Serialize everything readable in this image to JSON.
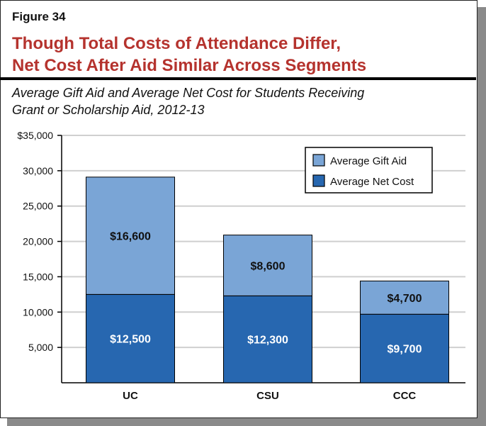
{
  "figure_label": "Figure 34",
  "title_lines": [
    "Though Total Costs of Attendance Differ,",
    "Net Cost After Aid Similar Across Segments"
  ],
  "subtitle_lines": [
    "Average Gift Aid and Average Net Cost for Students Receiving",
    "Grant or Scholarship Aid, 2012-13"
  ],
  "chart_data": {
    "type": "bar",
    "stacked": true,
    "categories": [
      "UC",
      "CSU",
      "CCC"
    ],
    "series": [
      {
        "name": "Average Net Cost",
        "values": [
          12500,
          12300,
          9700
        ],
        "labels": [
          "$12,500",
          "$12,300",
          "$9,700"
        ],
        "color": "#2767b0"
      },
      {
        "name": "Average Gift Aid",
        "values": [
          16600,
          8600,
          4700
        ],
        "labels": [
          "$16,600",
          "$8,600",
          "$4,700"
        ],
        "color": "#7aa5d6"
      }
    ],
    "ylim": [
      0,
      35000
    ],
    "yticks": [
      5000,
      10000,
      15000,
      20000,
      25000,
      30000,
      35000
    ],
    "ytick_labels": [
      "5,000",
      "10,000",
      "15,000",
      "20,000",
      "25,000",
      "30,000",
      "$35,000"
    ],
    "grid": true,
    "legend": "top-right",
    "legend_order": [
      "Average Gift Aid",
      "Average Net Cost"
    ]
  }
}
